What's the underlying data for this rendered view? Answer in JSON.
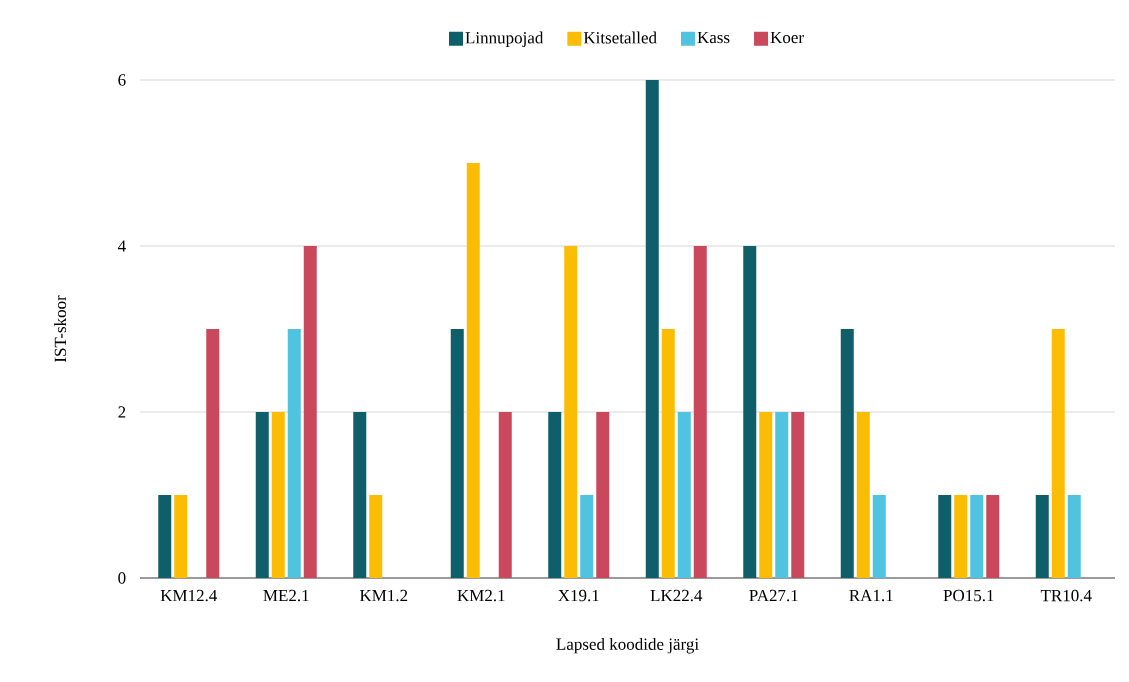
{
  "chart_data": {
    "type": "bar",
    "xlabel": "Lapsed koodide järgi",
    "ylabel": "IST-skoor",
    "categories": [
      "KM12.4",
      "ME2.1",
      "KM1.2",
      "KM2.1",
      "X19.1",
      "LK22.4",
      "PA27.1",
      "RA1.1",
      "PO15.1",
      "TR10.4"
    ],
    "series": [
      {
        "name": "Linnupojad",
        "color": "#0f5f6b",
        "values": [
          1,
          2,
          2,
          3,
          2,
          6,
          4,
          3,
          1,
          1
        ]
      },
      {
        "name": "Kitsetalled",
        "color": "#fbbc04",
        "values": [
          1,
          2,
          1,
          5,
          4,
          3,
          2,
          2,
          1,
          3
        ]
      },
      {
        "name": "Kass",
        "color": "#4fc3e0",
        "values": [
          0,
          3,
          0,
          0,
          1,
          2,
          2,
          1,
          1,
          1
        ]
      },
      {
        "name": "Koer",
        "color": "#c9485b",
        "values": [
          3,
          4,
          0,
          2,
          2,
          4,
          2,
          0,
          1,
          0
        ]
      }
    ],
    "ylim": [
      0,
      6
    ],
    "yticks": [
      0,
      2,
      4,
      6
    ],
    "grid": "y",
    "legend": "top"
  }
}
